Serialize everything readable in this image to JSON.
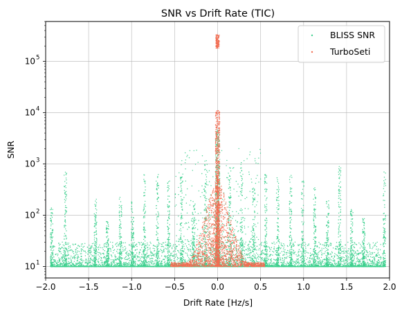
{
  "chart_data": {
    "type": "scatter",
    "title": "SNR vs Drift Rate (TIC)",
    "xlabel": "Drift Rate [Hz/s]",
    "ylabel": "SNR",
    "xlim": [
      -2.0,
      2.0
    ],
    "ylim": [
      6,
      600000
    ],
    "yscale": "log",
    "grid": true,
    "legend_position": "top-right",
    "x_ticks": [
      -2.0,
      -1.5,
      -1.0,
      -0.5,
      0.0,
      0.5,
      1.0,
      1.5,
      2.0
    ],
    "x_tick_labels": [
      "−2.0",
      "−1.5",
      "−1.0",
      "−0.5",
      "0.0",
      "0.5",
      "1.0",
      "1.5",
      "2.0"
    ],
    "y_ticks": [
      10,
      100,
      1000,
      10000,
      100000
    ],
    "y_tick_labels": [
      {
        "base": "10",
        "exp": "1"
      },
      {
        "base": "10",
        "exp": "2"
      },
      {
        "base": "10",
        "exp": "3"
      },
      {
        "base": "10",
        "exp": "4"
      },
      {
        "base": "10",
        "exp": "5"
      }
    ],
    "series": [
      {
        "name": "BLISS SNR",
        "color": "#3fd08f",
        "baseline_snr": 10,
        "x_range": [
          -1.94,
          1.94
        ],
        "dense_floor_max_snr": 30,
        "spikes": [
          {
            "x": -1.93,
            "max_snr": 150
          },
          {
            "x": -1.77,
            "max_snr": 700
          },
          {
            "x": -1.42,
            "max_snr": 220
          },
          {
            "x": -1.28,
            "max_snr": 80
          },
          {
            "x": -1.13,
            "max_snr": 300
          },
          {
            "x": -0.99,
            "max_snr": 200
          },
          {
            "x": -0.85,
            "max_snr": 650
          },
          {
            "x": -0.7,
            "max_snr": 670
          },
          {
            "x": -0.57,
            "max_snr": 620
          },
          {
            "x": -0.42,
            "max_snr": 700
          },
          {
            "x": -0.28,
            "max_snr": 200
          },
          {
            "x": -0.14,
            "max_snr": 1500
          },
          {
            "x": 0.14,
            "max_snr": 900
          },
          {
            "x": 0.28,
            "max_snr": 1000
          },
          {
            "x": 0.42,
            "max_snr": 350
          },
          {
            "x": 0.56,
            "max_snr": 650
          },
          {
            "x": 0.7,
            "max_snr": 680
          },
          {
            "x": 0.85,
            "max_snr": 600
          },
          {
            "x": 0.99,
            "max_snr": 500
          },
          {
            "x": 1.13,
            "max_snr": 350
          },
          {
            "x": 1.28,
            "max_snr": 200
          },
          {
            "x": 1.42,
            "max_snr": 900
          },
          {
            "x": 1.56,
            "max_snr": 130
          },
          {
            "x": 1.7,
            "max_snr": 100
          },
          {
            "x": 1.94,
            "max_snr": 700
          }
        ],
        "center_peak_snr": 5000
      },
      {
        "name": "TurboSeti",
        "color": "#f26d52",
        "x_range": [
          -0.55,
          0.55
        ],
        "min_snr": 10,
        "center_peak_snr": 11000,
        "cluster_x": 0.0,
        "cluster_snr_range": [
          180000,
          330000
        ]
      }
    ]
  }
}
